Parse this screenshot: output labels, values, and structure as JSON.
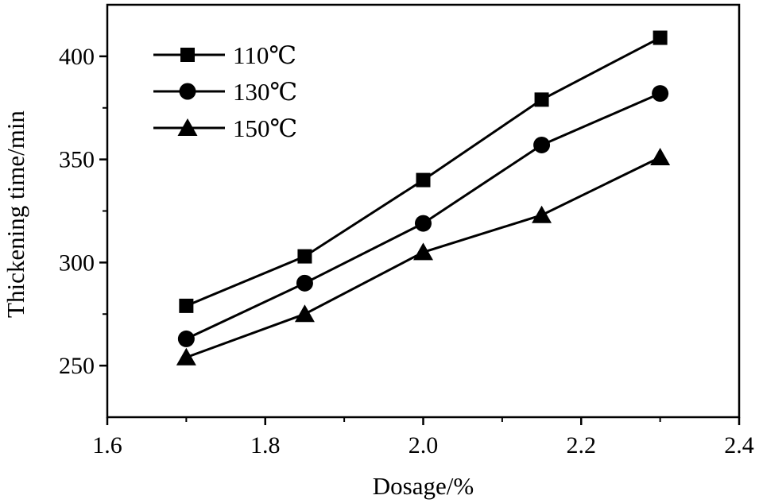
{
  "chart_data": {
    "type": "line",
    "title": "",
    "xlabel": "Dosage/%",
    "ylabel": "Thickening time/min",
    "xlim": [
      1.6,
      2.4
    ],
    "ylim": [
      225,
      425
    ],
    "x_ticks": [
      "1.6",
      "1.8",
      "2.0",
      "2.2",
      "2.4"
    ],
    "y_ticks": [
      "250",
      "300",
      "350",
      "400"
    ],
    "x": [
      1.7,
      1.85,
      2.0,
      2.15,
      2.3
    ],
    "series": [
      {
        "name": "110℃",
        "marker": "square",
        "values": [
          279,
          303,
          340,
          379,
          409
        ]
      },
      {
        "name": "130℃",
        "marker": "circle",
        "values": [
          263,
          290,
          319,
          357,
          382
        ]
      },
      {
        "name": "150℃",
        "marker": "triangle",
        "values": [
          254,
          275,
          305,
          323,
          351
        ]
      }
    ],
    "legend_position": "top-left",
    "grid": false,
    "colors": {
      "line": "#000000",
      "marker": "#000000"
    }
  }
}
